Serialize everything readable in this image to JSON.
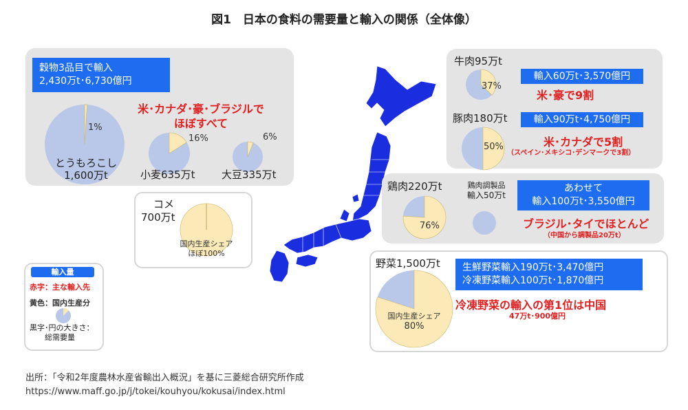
{
  "title": "図1　日本の食料の需要量と輸入の関係（全体像）",
  "colors": {
    "import": "#b9c8e8",
    "domestic": "#fbeab7",
    "box": "#1e6cf0",
    "red": "#e02020",
    "map": "#1a2ee0"
  },
  "grains": {
    "box": [
      "穀物3品目で輸入",
      "2,430万t･6,730億円"
    ],
    "sources": [
      "米･カナダ･豪･ブラジルで",
      "ほぼすべて"
    ]
  },
  "rice": {
    "label": [
      "コメ",
      "700万t"
    ],
    "note": [
      "国内生産シェア",
      "ほぼ100%"
    ]
  },
  "beef": {
    "label": "牛肉95万t",
    "box": "輸入60万t･3,570億円",
    "sources": "米･豪で9割"
  },
  "pork": {
    "label": "豚肉180万t",
    "box": "輸入90万t･4,750億円",
    "sources": "米･カナダで5割",
    "sub": "（スペイン･メキシコ･デンマークで3割）"
  },
  "chicken": {
    "label": "鶏肉220万t",
    "processed": [
      "鶏肉調製品",
      "輸入50万t"
    ],
    "box": [
      "あわせて",
      "輸入100万t･3,550億円"
    ],
    "sources": "ブラジル･タイでほとんど",
    "sub": "（中国から調製品20万t）"
  },
  "veg": {
    "label": "野菜1,500万t",
    "note": [
      "国内生産シェア",
      "80%"
    ],
    "box": [
      "生鮮野菜輸入190万t･3,470億円",
      "冷凍野菜輸入100万t･1,870億円"
    ],
    "sources": "冷凍野菜の輸入の第1位は中国",
    "sub": "47万t･900億円"
  },
  "legend": {
    "title": "輸入量",
    "red": "赤字：主な輸入先",
    "yellow": "黄色：国内生産分",
    "black": [
      "黒字･円の大きさ：",
      "総需要量"
    ]
  },
  "footer": {
    "source": "出所：「令和2年度農林水産省輸出入概況」を基に三菱総合研究所作成",
    "url": "https://www.maff.go.jp/j/tokei/kouhyou/kokusai/index.html"
  },
  "chart_data": {
    "type": "pie",
    "unit": "万t",
    "items": [
      {
        "name": "とうもろこし",
        "total_label": "1,600万t",
        "total": 1600,
        "domestic_share_pct": 1,
        "pct_label": "1%"
      },
      {
        "name": "小麦",
        "total_label": "635万t",
        "total": 635,
        "domestic_share_pct": 16,
        "pct_label": "16%"
      },
      {
        "name": "大豆",
        "total_label": "335万t",
        "total": 335,
        "domestic_share_pct": 6,
        "pct_label": "6%"
      },
      {
        "name": "コメ",
        "total": 700,
        "domestic_share_pct": 100
      },
      {
        "name": "牛肉",
        "total": 95,
        "domestic_share_pct": 37,
        "pct_label": "37%"
      },
      {
        "name": "豚肉",
        "total": 180,
        "domestic_share_pct": 50,
        "pct_label": "50%"
      },
      {
        "name": "鶏肉",
        "total": 220,
        "domestic_share_pct": 76,
        "pct_label": "76%"
      },
      {
        "name": "鶏肉調製品",
        "total": 50,
        "domestic_share_pct": 0
      },
      {
        "name": "野菜",
        "total": 1500,
        "domestic_share_pct": 80
      }
    ]
  }
}
